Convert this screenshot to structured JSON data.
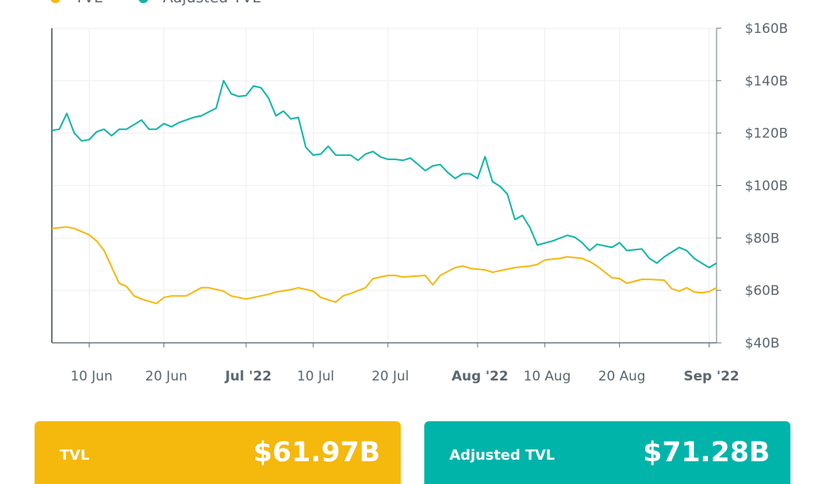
{
  "colors": {
    "tvl": "#F5B80C",
    "adjusted_tvl": "#10B5A8",
    "grid": "#EEEEEE",
    "axis": "#6B7780"
  },
  "legend": [
    {
      "label": "TVL",
      "color": "#F5B80C"
    },
    {
      "label": "Adjusted TVL",
      "color": "#10B5A8"
    }
  ],
  "cards": {
    "tvl": {
      "label": "TVL",
      "value": "$61.97B",
      "color": "#F5B80C"
    },
    "adjusted": {
      "label": "Adjusted TVL",
      "value": "$71.28B",
      "color": "#00B4AA"
    }
  },
  "chart_data": {
    "type": "line",
    "xlim": [
      "2022-06-05",
      "2022-09-02"
    ],
    "ylim": [
      40,
      160
    ],
    "grid": true,
    "legend_position": "top-left",
    "y_axis_side": "right",
    "x_ticks": [
      {
        "date": "2022-06-10",
        "label": "10 Jun",
        "bold": false
      },
      {
        "date": "2022-06-20",
        "label": "20 Jun",
        "bold": false
      },
      {
        "date": "2022-07-01",
        "label": "Jul '22",
        "bold": true
      },
      {
        "date": "2022-07-10",
        "label": "10 Jul",
        "bold": false
      },
      {
        "date": "2022-07-20",
        "label": "20 Jul",
        "bold": false
      },
      {
        "date": "2022-08-01",
        "label": "Aug '22",
        "bold": true
      },
      {
        "date": "2022-08-10",
        "label": "10 Aug",
        "bold": false
      },
      {
        "date": "2022-08-20",
        "label": "20 Aug",
        "bold": false
      },
      {
        "date": "2022-09-01",
        "label": "Sep '22",
        "bold": true
      }
    ],
    "y_ticks": [
      {
        "value": 40,
        "label": "$40B"
      },
      {
        "value": 60,
        "label": "$60B"
      },
      {
        "value": 80,
        "label": "$80B"
      },
      {
        "value": 100,
        "label": "$100B"
      },
      {
        "value": 120,
        "label": "$120B"
      },
      {
        "value": 140,
        "label": "$140B"
      },
      {
        "value": 160,
        "label": "$160B"
      }
    ],
    "series": [
      {
        "name": "TVL",
        "color": "#F5B80C",
        "points": [
          [
            "2022-06-05",
            83.6
          ],
          [
            "2022-06-07",
            84.2
          ],
          [
            "2022-06-08",
            83.6
          ],
          [
            "2022-06-10",
            81.2
          ],
          [
            "2022-06-11",
            78.8
          ],
          [
            "2022-06-12",
            75.2
          ],
          [
            "2022-06-14",
            62.7
          ],
          [
            "2022-06-15",
            61.5
          ],
          [
            "2022-06-16",
            57.9
          ],
          [
            "2022-06-17",
            56.7
          ],
          [
            "2022-06-19",
            55.0
          ],
          [
            "2022-06-20",
            57.3
          ],
          [
            "2022-06-21",
            57.9
          ],
          [
            "2022-06-23",
            57.9
          ],
          [
            "2022-06-25",
            61.0
          ],
          [
            "2022-06-26",
            61.0
          ],
          [
            "2022-06-28",
            59.7
          ],
          [
            "2022-06-29",
            57.9
          ],
          [
            "2022-07-01",
            56.7
          ],
          [
            "2022-07-03",
            57.9
          ],
          [
            "2022-07-04",
            58.5
          ],
          [
            "2022-07-05",
            59.4
          ],
          [
            "2022-07-07",
            60.3
          ],
          [
            "2022-07-08",
            61.0
          ],
          [
            "2022-07-10",
            59.7
          ],
          [
            "2022-07-11",
            57.3
          ],
          [
            "2022-07-13",
            55.5
          ],
          [
            "2022-07-14",
            57.9
          ],
          [
            "2022-07-15",
            58.8
          ],
          [
            "2022-07-17",
            61.0
          ],
          [
            "2022-07-18",
            64.5
          ],
          [
            "2022-07-20",
            65.7
          ],
          [
            "2022-07-21",
            65.7
          ],
          [
            "2022-07-22",
            65.1
          ],
          [
            "2022-07-25",
            65.7
          ],
          [
            "2022-07-26",
            62.1
          ],
          [
            "2022-07-27",
            65.7
          ],
          [
            "2022-07-29",
            68.7
          ],
          [
            "2022-07-30",
            69.3
          ],
          [
            "2022-07-31",
            68.4
          ],
          [
            "2022-08-02",
            67.8
          ],
          [
            "2022-08-03",
            66.9
          ],
          [
            "2022-08-05",
            68.1
          ],
          [
            "2022-08-06",
            68.7
          ],
          [
            "2022-08-08",
            69.3
          ],
          [
            "2022-08-09",
            69.9
          ],
          [
            "2022-08-10",
            71.6
          ],
          [
            "2022-08-12",
            72.2
          ],
          [
            "2022-08-13",
            72.8
          ],
          [
            "2022-08-15",
            72.2
          ],
          [
            "2022-08-16",
            71.0
          ],
          [
            "2022-08-17",
            69.3
          ],
          [
            "2022-08-19",
            64.8
          ],
          [
            "2022-08-20",
            64.5
          ],
          [
            "2022-08-21",
            62.7
          ],
          [
            "2022-08-23",
            64.2
          ],
          [
            "2022-08-24",
            64.2
          ],
          [
            "2022-08-26",
            63.9
          ],
          [
            "2022-08-27",
            60.6
          ],
          [
            "2022-08-28",
            59.7
          ],
          [
            "2022-08-29",
            61.0
          ],
          [
            "2022-08-30",
            59.4
          ],
          [
            "2022-08-31",
            59.1
          ],
          [
            "2022-09-01",
            59.5
          ],
          [
            "2022-09-02",
            61.0
          ]
        ]
      },
      {
        "name": "Adjusted TVL",
        "color": "#10B5A8",
        "points": [
          [
            "2022-06-05",
            121.0
          ],
          [
            "2022-06-06",
            121.5
          ],
          [
            "2022-06-07",
            127.5
          ],
          [
            "2022-06-08",
            120.0
          ],
          [
            "2022-06-09",
            117.0
          ],
          [
            "2022-06-10",
            117.5
          ],
          [
            "2022-06-11",
            120.5
          ],
          [
            "2022-06-12",
            121.5
          ],
          [
            "2022-06-13",
            119.0
          ],
          [
            "2022-06-14",
            121.5
          ],
          [
            "2022-06-15",
            121.5
          ],
          [
            "2022-06-17",
            125.0
          ],
          [
            "2022-06-18",
            121.5
          ],
          [
            "2022-06-19",
            121.5
          ],
          [
            "2022-06-20",
            123.6
          ],
          [
            "2022-06-21",
            122.4
          ],
          [
            "2022-06-22",
            124.0
          ],
          [
            "2022-06-24",
            126.0
          ],
          [
            "2022-06-25",
            126.6
          ],
          [
            "2022-06-27",
            129.5
          ],
          [
            "2022-06-28",
            140.0
          ],
          [
            "2022-06-29",
            135.0
          ],
          [
            "2022-06-30",
            134.0
          ],
          [
            "2022-07-01",
            134.3
          ],
          [
            "2022-07-02",
            138.0
          ],
          [
            "2022-07-03",
            137.3
          ],
          [
            "2022-07-04",
            133.4
          ],
          [
            "2022-07-05",
            126.6
          ],
          [
            "2022-07-06",
            128.4
          ],
          [
            "2022-07-07",
            125.4
          ],
          [
            "2022-07-08",
            126.0
          ],
          [
            "2022-07-09",
            114.6
          ],
          [
            "2022-07-10",
            111.6
          ],
          [
            "2022-07-11",
            112.0
          ],
          [
            "2022-07-12",
            115.0
          ],
          [
            "2022-07-13",
            111.6
          ],
          [
            "2022-07-15",
            111.6
          ],
          [
            "2022-07-16",
            109.6
          ],
          [
            "2022-07-17",
            112.0
          ],
          [
            "2022-07-18",
            113.0
          ],
          [
            "2022-07-19",
            110.9
          ],
          [
            "2022-07-20",
            110.0
          ],
          [
            "2022-07-21",
            110.0
          ],
          [
            "2022-07-22",
            109.6
          ],
          [
            "2022-07-23",
            110.5
          ],
          [
            "2022-07-25",
            105.7
          ],
          [
            "2022-07-26",
            107.5
          ],
          [
            "2022-07-27",
            108.0
          ],
          [
            "2022-07-28",
            105.0
          ],
          [
            "2022-07-29",
            102.7
          ],
          [
            "2022-07-30",
            104.5
          ],
          [
            "2022-07-31",
            104.5
          ],
          [
            "2022-08-01",
            102.7
          ],
          [
            "2022-08-02",
            111.0
          ],
          [
            "2022-08-03",
            101.5
          ],
          [
            "2022-08-04",
            99.7
          ],
          [
            "2022-08-05",
            96.7
          ],
          [
            "2022-08-06",
            87.0
          ],
          [
            "2022-08-07",
            88.6
          ],
          [
            "2022-08-08",
            84.0
          ],
          [
            "2022-08-09",
            77.3
          ],
          [
            "2022-08-11",
            78.8
          ],
          [
            "2022-08-13",
            81.0
          ],
          [
            "2022-08-14",
            80.3
          ],
          [
            "2022-08-15",
            78.2
          ],
          [
            "2022-08-16",
            75.2
          ],
          [
            "2022-08-17",
            77.6
          ],
          [
            "2022-08-19",
            76.4
          ],
          [
            "2022-08-20",
            78.2
          ],
          [
            "2022-08-21",
            75.2
          ],
          [
            "2022-08-23",
            75.8
          ],
          [
            "2022-08-24",
            72.2
          ],
          [
            "2022-08-25",
            70.4
          ],
          [
            "2022-08-26",
            72.8
          ],
          [
            "2022-08-28",
            76.4
          ],
          [
            "2022-08-29",
            75.2
          ],
          [
            "2022-08-30",
            72.2
          ],
          [
            "2022-08-31",
            70.4
          ],
          [
            "2022-09-01",
            68.7
          ],
          [
            "2022-09-02",
            70.4
          ]
        ]
      }
    ]
  }
}
